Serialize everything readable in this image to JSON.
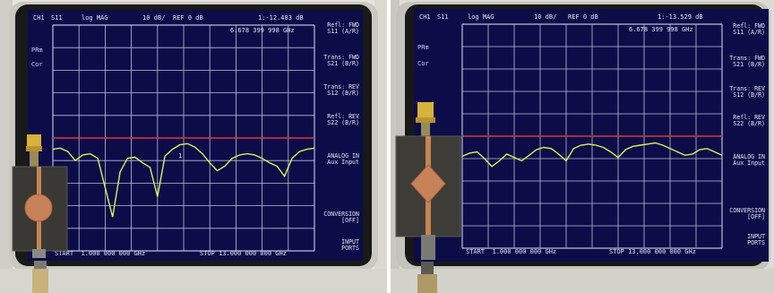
{
  "panels": [
    {
      "header": {
        "channel": "CH1",
        "param": "S11",
        "format": "log MAG",
        "scale": "10 dB/",
        "ref": "REF 0 dB",
        "marker_value": "1:-12.483 dB"
      },
      "marker_freq": "6.678 399 998 GHz",
      "left_annotations": [
        "PRm",
        "Cor"
      ],
      "marker_flag": "1",
      "softkeys": [
        {
          "line1": "Refl: FWD",
          "line2": "S11 (A/R)"
        },
        {
          "line1": "Trans: FWD",
          "line2": "S21 (B/R)"
        },
        {
          "line1": "Trans: REV",
          "line2": "S12 (B/R)"
        },
        {
          "line1": "Refl: REV",
          "line2": "S22 (B/R)"
        },
        {
          "line1": "ANALOG IN",
          "line2": "Aux Input"
        },
        {
          "line1": "CONVERSION",
          "line2": "[OFF]"
        },
        {
          "line1": "INPUT",
          "line2": "PORTS"
        }
      ],
      "footer": {
        "start": "START  1.000 000 000 GHz",
        "stop": "STOP 13.000 000 000 GHz"
      },
      "antenna_patch_shape": "circle",
      "trace_db": [
        -15,
        -14.5,
        -16,
        -20,
        -17.5,
        -17,
        -19,
        -32,
        -45,
        -25,
        -19,
        -18.5,
        -21,
        -23,
        -36,
        -18,
        -15,
        -13,
        -12.5,
        -14,
        -17,
        -21,
        -24.5,
        -22.5,
        -19,
        -17.5,
        -17,
        -17.5,
        -19,
        -21,
        -22.5,
        -27,
        -19,
        -16,
        -15,
        -14.5
      ],
      "colors": {
        "screen": "#0c0d48",
        "grid": "#d8dcef",
        "trace": "#d8f25a",
        "ref_line": "#e0333a"
      }
    },
    {
      "header": {
        "channel": "CH1",
        "param": "S11",
        "format": "log MAG",
        "scale": "10 dB/",
        "ref": "REF 0 dB",
        "marker_value": "1:-13.529 dB"
      },
      "marker_freq": "6.678 399 998 GHz",
      "left_annotations": [
        "PRm",
        "Cor"
      ],
      "marker_flag": "1",
      "softkeys": [
        {
          "line1": "Refl: FWD",
          "line2": "S11 (A/R)"
        },
        {
          "line1": "Trans: FWD",
          "line2": "S21 (B/R)"
        },
        {
          "line1": "Trans: REV",
          "line2": "S12 (B/R)"
        },
        {
          "line1": "Refl: REV",
          "line2": "S22 (B/R)"
        },
        {
          "line1": "ANALOG IN",
          "line2": "Aux Input"
        },
        {
          "line1": "CONVERSION",
          "line2": "[OFF]"
        },
        {
          "line1": "INPUT",
          "line2": "PORTS"
        }
      ],
      "footer": {
        "start": "START  1.000 000 000 GHz",
        "stop": "STOP 13.000 000 000 GHz"
      },
      "antenna_patch_shape": "diamond",
      "trace_db": [
        -19,
        -17.5,
        -17,
        -20,
        -23.5,
        -21,
        -18,
        -19.5,
        -21,
        -18.5,
        -16,
        -15,
        -15.5,
        -18,
        -21,
        -15.5,
        -14,
        -13.5,
        -14,
        -15,
        -17,
        -19.5,
        -16,
        -14.5,
        -14,
        -13.5,
        -13,
        -14,
        -15.5,
        -17,
        -18.5,
        -18,
        -16,
        -15.5,
        -17,
        -18.5
      ],
      "colors": {
        "screen": "#0c0d48",
        "grid": "#d8dcef",
        "trace": "#d8f25a",
        "ref_line": "#e0333a"
      }
    }
  ]
}
